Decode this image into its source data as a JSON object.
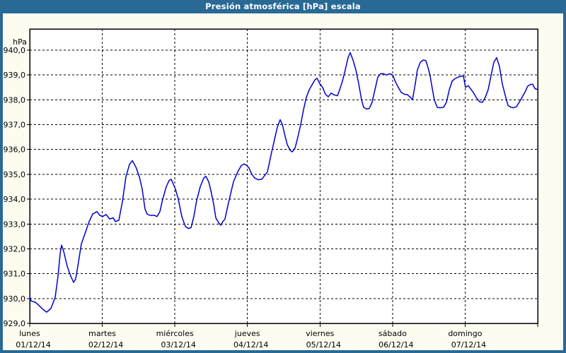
{
  "window": {
    "title": "Presión atmosférica [hPa] escala"
  },
  "colors": {
    "frame_blue": "#286996",
    "window_bg": "#fcfcf1",
    "plot_bg": "#ffffff",
    "line_blue": "#0000cc",
    "grid_black": "#000000",
    "title_text": "#ffffff"
  },
  "chart_data": {
    "type": "line",
    "title": "Presión atmosférica [hPa] escala",
    "unit_label": "hPa",
    "grid": "dashed-black-on-white",
    "legend": "none",
    "y_axis": {
      "min": 929.0,
      "max": 940.4,
      "tick_values": [
        940,
        939,
        938,
        937,
        936,
        935,
        934,
        933,
        932,
        931,
        930,
        929
      ],
      "tick_labels": [
        "940,0",
        "939,0",
        "938,0",
        "937,0",
        "936,0",
        "935,0",
        "934,0",
        "933,0",
        "932,0",
        "931,0",
        "930,0",
        "929,0"
      ]
    },
    "x_axis": {
      "unit": "days (1 tick per midnight, dashed vertical gridlines)",
      "span_days": 7,
      "days": [
        {
          "name": "lunes",
          "date": "01/12/14"
        },
        {
          "name": "martes",
          "date": "02/12/14"
        },
        {
          "name": "miércoles",
          "date": "03/12/14"
        },
        {
          "name": "jueves",
          "date": "04/12/14"
        },
        {
          "name": "viernes",
          "date": "05/12/14"
        },
        {
          "name": "sábado",
          "date": "06/12/14"
        },
        {
          "name": "domingo",
          "date": "07/12/14"
        }
      ]
    },
    "series": [
      {
        "name": "Presión atmosférica [hPa]",
        "color": "#0000cc",
        "points": [
          [
            0.0,
            930.1
          ],
          [
            0.019,
            929.9
          ],
          [
            0.078,
            929.85
          ],
          [
            0.136,
            929.7
          ],
          [
            0.175,
            929.58
          ],
          [
            0.234,
            929.45
          ],
          [
            0.292,
            929.6
          ],
          [
            0.351,
            930.05
          ],
          [
            0.39,
            930.9
          ],
          [
            0.419,
            931.8
          ],
          [
            0.439,
            932.15
          ],
          [
            0.468,
            931.9
          ],
          [
            0.517,
            931.3
          ],
          [
            0.565,
            930.9
          ],
          [
            0.604,
            930.65
          ],
          [
            0.634,
            930.8
          ],
          [
            0.663,
            931.3
          ],
          [
            0.712,
            932.2
          ],
          [
            0.76,
            932.6
          ],
          [
            0.819,
            933.1
          ],
          [
            0.868,
            933.4
          ],
          [
            0.926,
            933.5
          ],
          [
            0.965,
            933.35
          ],
          [
            1.004,
            933.3
          ],
          [
            1.053,
            933.38
          ],
          [
            1.102,
            933.2
          ],
          [
            1.15,
            933.25
          ],
          [
            1.18,
            933.1
          ],
          [
            1.228,
            933.15
          ],
          [
            1.277,
            933.9
          ],
          [
            1.326,
            934.9
          ],
          [
            1.375,
            935.4
          ],
          [
            1.414,
            935.55
          ],
          [
            1.462,
            935.3
          ],
          [
            1.511,
            934.9
          ],
          [
            1.55,
            934.4
          ],
          [
            1.589,
            933.6
          ],
          [
            1.618,
            933.4
          ],
          [
            1.657,
            933.35
          ],
          [
            1.716,
            933.35
          ],
          [
            1.755,
            933.3
          ],
          [
            1.794,
            933.5
          ],
          [
            1.833,
            934.0
          ],
          [
            1.882,
            934.5
          ],
          [
            1.921,
            934.75
          ],
          [
            1.95,
            934.8
          ],
          [
            1.979,
            934.6
          ],
          [
            2.008,
            934.4
          ],
          [
            2.047,
            934.0
          ],
          [
            2.096,
            933.3
          ],
          [
            2.145,
            932.9
          ],
          [
            2.184,
            932.82
          ],
          [
            2.223,
            932.85
          ],
          [
            2.262,
            933.3
          ],
          [
            2.301,
            933.95
          ],
          [
            2.35,
            934.5
          ],
          [
            2.398,
            934.85
          ],
          [
            2.428,
            934.92
          ],
          [
            2.467,
            934.7
          ],
          [
            2.496,
            934.35
          ],
          [
            2.535,
            933.8
          ],
          [
            2.564,
            933.25
          ],
          [
            2.603,
            933.05
          ],
          [
            2.632,
            932.95
          ],
          [
            2.662,
            933.1
          ],
          [
            2.691,
            933.2
          ],
          [
            2.72,
            933.6
          ],
          [
            2.759,
            934.1
          ],
          [
            2.808,
            934.7
          ],
          [
            2.866,
            935.1
          ],
          [
            2.915,
            935.35
          ],
          [
            2.954,
            935.42
          ],
          [
            2.993,
            935.35
          ],
          [
            3.022,
            935.25
          ],
          [
            3.061,
            935.0
          ],
          [
            3.1,
            934.85
          ],
          [
            3.149,
            934.78
          ],
          [
            3.198,
            934.8
          ],
          [
            3.237,
            934.95
          ],
          [
            3.276,
            935.1
          ],
          [
            3.305,
            935.5
          ],
          [
            3.334,
            935.9
          ],
          [
            3.373,
            936.4
          ],
          [
            3.412,
            936.9
          ],
          [
            3.451,
            937.2
          ],
          [
            3.481,
            937.0
          ],
          [
            3.51,
            936.65
          ],
          [
            3.549,
            936.2
          ],
          [
            3.588,
            935.97
          ],
          [
            3.617,
            935.9
          ],
          [
            3.656,
            936.05
          ],
          [
            3.695,
            936.5
          ],
          [
            3.734,
            937.0
          ],
          [
            3.773,
            937.6
          ],
          [
            3.812,
            938.1
          ],
          [
            3.851,
            938.4
          ],
          [
            3.89,
            938.6
          ],
          [
            3.929,
            938.8
          ],
          [
            3.958,
            938.87
          ],
          [
            3.997,
            938.65
          ],
          [
            4.036,
            938.5
          ],
          [
            4.075,
            938.22
          ],
          [
            4.114,
            938.12
          ],
          [
            4.153,
            938.27
          ],
          [
            4.192,
            938.2
          ],
          [
            4.241,
            938.16
          ],
          [
            4.27,
            938.4
          ],
          [
            4.309,
            938.75
          ],
          [
            4.348,
            939.2
          ],
          [
            4.387,
            939.7
          ],
          [
            4.416,
            939.9
          ],
          [
            4.455,
            939.6
          ],
          [
            4.494,
            939.2
          ],
          [
            4.533,
            938.65
          ],
          [
            4.572,
            938.0
          ],
          [
            4.601,
            937.7
          ],
          [
            4.64,
            937.63
          ],
          [
            4.679,
            937.65
          ],
          [
            4.718,
            937.9
          ],
          [
            4.757,
            938.4
          ],
          [
            4.796,
            938.9
          ],
          [
            4.835,
            939.05
          ],
          [
            4.874,
            939.05
          ],
          [
            4.913,
            939.0
          ],
          [
            4.962,
            939.05
          ],
          [
            5.001,
            939.0
          ],
          [
            5.04,
            938.72
          ],
          [
            5.079,
            938.5
          ],
          [
            5.118,
            938.3
          ],
          [
            5.167,
            938.22
          ],
          [
            5.206,
            938.2
          ],
          [
            5.245,
            938.1
          ],
          [
            5.274,
            938.0
          ],
          [
            5.313,
            938.65
          ],
          [
            5.342,
            939.2
          ],
          [
            5.381,
            939.5
          ],
          [
            5.42,
            939.6
          ],
          [
            5.459,
            939.58
          ],
          [
            5.489,
            939.3
          ],
          [
            5.518,
            938.95
          ],
          [
            5.547,
            938.45
          ],
          [
            5.576,
            938.0
          ],
          [
            5.615,
            937.7
          ],
          [
            5.654,
            937.68
          ],
          [
            5.703,
            937.7
          ],
          [
            5.742,
            937.9
          ],
          [
            5.781,
            938.4
          ],
          [
            5.82,
            938.75
          ],
          [
            5.859,
            938.85
          ],
          [
            5.908,
            938.92
          ],
          [
            5.947,
            938.95
          ],
          [
            5.976,
            938.96
          ],
          [
            6.005,
            938.5
          ],
          [
            6.044,
            938.57
          ],
          [
            6.073,
            938.45
          ],
          [
            6.112,
            938.3
          ],
          [
            6.151,
            938.1
          ],
          [
            6.2,
            937.92
          ],
          [
            6.239,
            937.9
          ],
          [
            6.278,
            938.1
          ],
          [
            6.317,
            938.4
          ],
          [
            6.356,
            938.95
          ],
          [
            6.395,
            939.5
          ],
          [
            6.434,
            939.7
          ],
          [
            6.473,
            939.35
          ],
          [
            6.512,
            938.65
          ],
          [
            6.551,
            938.2
          ],
          [
            6.59,
            937.78
          ],
          [
            6.629,
            937.7
          ],
          [
            6.668,
            937.68
          ],
          [
            6.707,
            937.72
          ],
          [
            6.746,
            937.9
          ],
          [
            6.785,
            938.1
          ],
          [
            6.824,
            938.3
          ],
          [
            6.863,
            938.55
          ],
          [
            6.902,
            938.62
          ],
          [
            6.931,
            938.63
          ],
          [
            6.961,
            938.45
          ],
          [
            6.99,
            938.42
          ]
        ]
      }
    ]
  }
}
